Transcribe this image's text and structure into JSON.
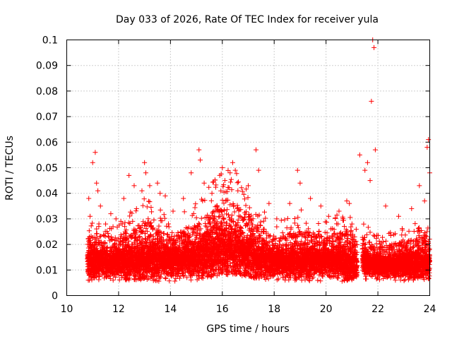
{
  "chart_data": {
    "type": "scatter",
    "title": "Day 033 of 2026, Rate Of TEC Index for receiver yula",
    "xlabel": "GPS time / hours",
    "ylabel": "ROTI / TECUs",
    "xlim": [
      10,
      24
    ],
    "ylim": [
      0,
      0.1
    ],
    "x_ticks": [
      10,
      12,
      14,
      16,
      18,
      20,
      22,
      24
    ],
    "x_tick_labels": [
      "10",
      "12",
      "14",
      "16",
      "18",
      "20",
      "22",
      "24"
    ],
    "y_ticks": [
      0,
      0.01,
      0.02,
      0.03,
      0.04,
      0.05,
      0.06,
      0.07,
      0.08,
      0.09,
      0.1
    ],
    "y_tick_labels": [
      "0",
      "0.01",
      "0.02",
      "0.03",
      "0.04",
      "0.05",
      "0.06",
      "0.07",
      "0.08",
      "0.09",
      "0.1"
    ],
    "grid": true,
    "marker": "+",
    "color": "#ff0000",
    "data_gap": [
      21.2,
      21.4
    ],
    "series": [
      {
        "name": "ROTI",
        "x": [
          10.85,
          10.9,
          11.0,
          11.1,
          11.15,
          11.2,
          11.3,
          11.5,
          11.7,
          11.9,
          12.2,
          12.4,
          12.6,
          12.9,
          13.0,
          13.05,
          13.2,
          13.5,
          13.6,
          13.8,
          14.1,
          14.5,
          14.8,
          15.1,
          15.15,
          15.3,
          15.6,
          15.9,
          16.0,
          16.1,
          16.3,
          16.4,
          16.5,
          16.6,
          17.0,
          17.3,
          17.4,
          17.8,
          18.1,
          18.6,
          18.9,
          19.0,
          19.4,
          19.8,
          20.1,
          20.5,
          20.8,
          20.9,
          21.0,
          21.3,
          21.5,
          21.6,
          21.7,
          21.75,
          21.8,
          21.85,
          21.9,
          22.3,
          22.8,
          23.3,
          23.6,
          23.8,
          23.9,
          23.95,
          24.0
        ],
        "y": [
          0.038,
          0.031,
          0.052,
          0.056,
          0.044,
          0.041,
          0.035,
          0.028,
          0.032,
          0.03,
          0.038,
          0.047,
          0.043,
          0.041,
          0.052,
          0.048,
          0.043,
          0.044,
          0.04,
          0.039,
          0.033,
          0.038,
          0.048,
          0.057,
          0.053,
          0.044,
          0.04,
          0.047,
          0.05,
          0.045,
          0.048,
          0.052,
          0.049,
          0.041,
          0.043,
          0.057,
          0.049,
          0.036,
          0.03,
          0.036,
          0.049,
          0.044,
          0.038,
          0.035,
          0.031,
          0.033,
          0.037,
          0.036,
          0.028,
          0.055,
          0.049,
          0.052,
          0.045,
          0.076,
          0.1,
          0.097,
          0.057,
          0.035,
          0.031,
          0.034,
          0.043,
          0.037,
          0.058,
          0.061,
          0.048
        ],
        "baseline": {
          "x": [
            10.8,
            11.5,
            12.5,
            13.0,
            14.0,
            15.0,
            15.5,
            16.0,
            16.5,
            17.0,
            18.0,
            19.0,
            20.0,
            21.0,
            21.2,
            21.4,
            22.0,
            23.0,
            24.0
          ],
          "median": [
            0.0125,
            0.0125,
            0.013,
            0.014,
            0.0135,
            0.0145,
            0.016,
            0.018,
            0.017,
            0.0155,
            0.013,
            0.013,
            0.0135,
            0.0125,
            0.012,
            0.013,
            0.0115,
            0.012,
            0.0125
          ],
          "upper": [
            0.022,
            0.02,
            0.024,
            0.028,
            0.022,
            0.026,
            0.03,
            0.036,
            0.034,
            0.03,
            0.021,
            0.024,
            0.022,
            0.024,
            0.02,
            0.022,
            0.018,
            0.02,
            0.022
          ],
          "lower": [
            0.006,
            0.006,
            0.006,
            0.006,
            0.005,
            0.006,
            0.007,
            0.008,
            0.008,
            0.007,
            0.006,
            0.006,
            0.005,
            0.006,
            0.006,
            0.006,
            0.005,
            0.005,
            0.006
          ]
        }
      }
    ]
  }
}
